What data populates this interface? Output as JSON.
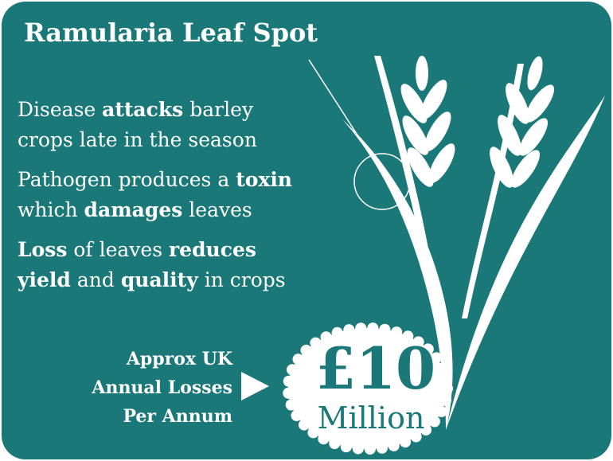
{
  "title": "Ramularia Leaf Spot",
  "points": [
    {
      "lines": [
        [
          {
            "text": "Disease "
          },
          {
            "text": "attacks",
            "bold": true
          },
          {
            "text": " barley"
          }
        ],
        [
          {
            "text": "crops late in the season"
          }
        ]
      ]
    },
    {
      "lines": [
        [
          {
            "text": "Pathogen produces a "
          },
          {
            "text": "toxin",
            "bold": true
          }
        ],
        [
          {
            "text": "which "
          },
          {
            "text": "damages",
            "bold": true
          },
          {
            "text": " leaves"
          }
        ]
      ]
    },
    {
      "lines": [
        [
          {
            "text": "Loss",
            "bold": true
          },
          {
            "text": " of leaves "
          },
          {
            "text": "reduces",
            "bold": true
          }
        ],
        [
          {
            "text": "yield",
            "bold": true
          },
          {
            "text": " and "
          },
          {
            "text": "quality",
            "bold": true
          },
          {
            "text": " in crops"
          }
        ]
      ]
    }
  ],
  "callout": {
    "label_lines": [
      "Approx UK",
      "Annual Losses",
      "Per Annum"
    ],
    "amount": "£10",
    "unit": "Million"
  }
}
